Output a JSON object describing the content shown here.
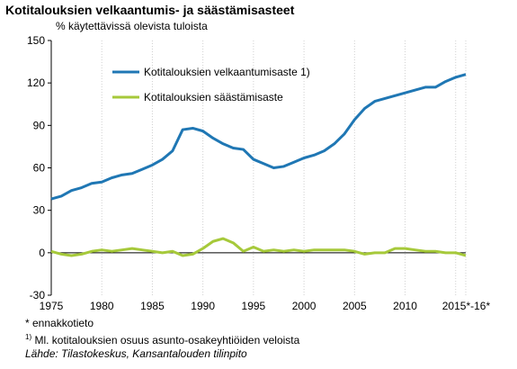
{
  "chart_data": {
    "type": "line",
    "title": "Kotitalouksien velkaantumis- ja säästämisasteet",
    "ylabel": "% käytettävissä olevista tuloista",
    "ylim": [
      -30,
      150
    ],
    "yticks": [
      -30,
      0,
      30,
      60,
      90,
      120,
      150
    ],
    "xticks": [
      "1975",
      "1980",
      "1985",
      "1990",
      "1995",
      "2000",
      "2005",
      "2010",
      "2015*-16*"
    ],
    "xtick_values": [
      1975,
      1980,
      1985,
      1990,
      1995,
      2000,
      2005,
      2010,
      2015
    ],
    "xlim": [
      1975,
      2016
    ],
    "grid": "vertical dotted",
    "legend_placement": "top-left",
    "x": [
      1975,
      1976,
      1977,
      1978,
      1979,
      1980,
      1981,
      1982,
      1983,
      1984,
      1985,
      1986,
      1987,
      1988,
      1989,
      1990,
      1991,
      1992,
      1993,
      1994,
      1995,
      1996,
      1997,
      1998,
      1999,
      2000,
      2001,
      2002,
      2003,
      2004,
      2005,
      2006,
      2007,
      2008,
      2009,
      2010,
      2011,
      2012,
      2013,
      2014,
      2015,
      2016
    ],
    "series": [
      {
        "name": "Kotitalouksien velkaantumisaste 1)",
        "color": "#1f77b4",
        "values": [
          38,
          40,
          44,
          46,
          49,
          50,
          53,
          55,
          56,
          59,
          62,
          66,
          72,
          87,
          88,
          86,
          81,
          77,
          74,
          73,
          66,
          63,
          60,
          61,
          64,
          67,
          69,
          72,
          77,
          84,
          94,
          102,
          107,
          109,
          111,
          113,
          115,
          117,
          117,
          121,
          124,
          126
        ]
      },
      {
        "name": "Kotitalouksien säästämisaste",
        "color": "#a6c93a",
        "values": [
          1,
          -1,
          -2,
          -1,
          1,
          2,
          1,
          2,
          3,
          2,
          1,
          0,
          1,
          -2,
          -1,
          3,
          8,
          10,
          7,
          1,
          4,
          1,
          2,
          1,
          2,
          1,
          2,
          2,
          2,
          2,
          1,
          -1,
          0,
          0,
          3,
          3,
          2,
          1,
          1,
          0,
          0,
          -2
        ]
      }
    ]
  },
  "notes": {
    "estimate_note": "* ennakkotieto",
    "footnote_marker": "1)",
    "footnote_text": " Ml. kotitalouksien osuus asunto-osakeyhtiöiden veloista",
    "source": "Lähde: Tilastokeskus, Kansantalouden tilinpito"
  }
}
